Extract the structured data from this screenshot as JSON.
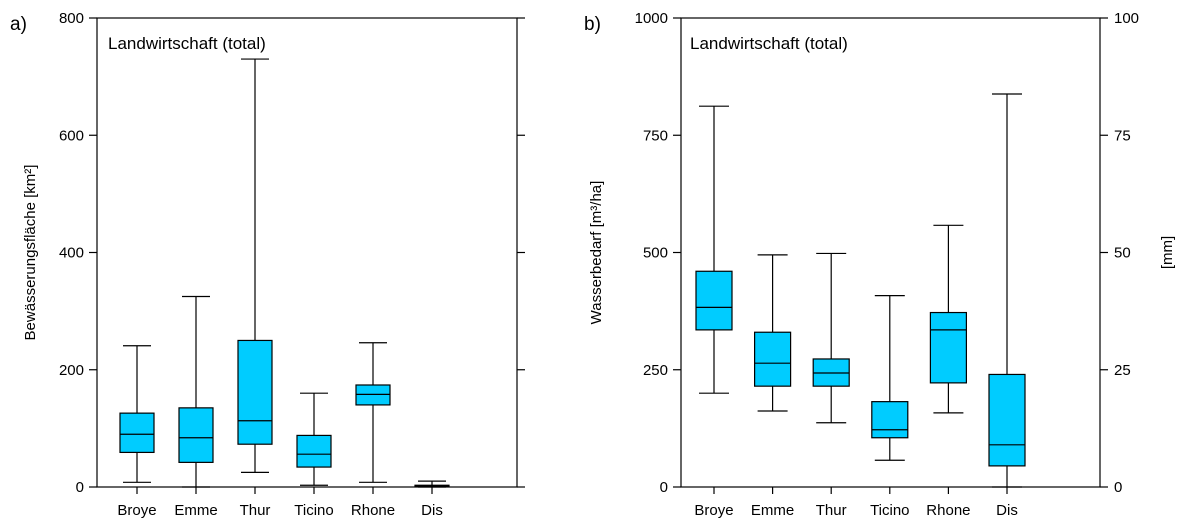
{
  "chart_data": [
    {
      "type": "box",
      "panel_label": "a)",
      "title": "Landwirtschaft (total)",
      "ylabel": "Bewässerungsfläche [km²]",
      "ylim": [
        0,
        800
      ],
      "yticks": [
        "0",
        "200",
        "400",
        "600",
        "800"
      ],
      "y2ticks": [],
      "y2label": "",
      "categories": [
        "Broye",
        "Emme",
        "Thur",
        "Ticino",
        "Rhone",
        "Dis"
      ],
      "box_color": "#00ccff",
      "boxes": [
        {
          "min": 8,
          "q1": 59,
          "median": 90,
          "q3": 126,
          "max": 241
        },
        {
          "min": 0,
          "q1": 42,
          "median": 84,
          "q3": 135,
          "max": 325
        },
        {
          "min": 25,
          "q1": 73,
          "median": 113,
          "q3": 250,
          "max": 730
        },
        {
          "min": 3,
          "q1": 34,
          "median": 56,
          "q3": 88,
          "max": 160
        },
        {
          "min": 8,
          "q1": 140,
          "median": 158,
          "q3": 174,
          "max": 246
        },
        {
          "min": 0,
          "q1": 0.5,
          "median": 1.5,
          "q3": 3,
          "max": 10
        }
      ]
    },
    {
      "type": "box",
      "panel_label": "b)",
      "title": "Landwirtschaft (total)",
      "ylabel": "Wasserbedarf [m³/ha]",
      "ylim": [
        0,
        1000
      ],
      "yticks": [
        "0",
        "250",
        "500",
        "750",
        "1000"
      ],
      "y2ticks": [
        "0",
        "25",
        "50",
        "75",
        "100"
      ],
      "y2label": "[mm]",
      "categories": [
        "Broye",
        "Emme",
        "Thur",
        "Ticino",
        "Rhone",
        "Dis"
      ],
      "box_color": "#00ccff",
      "boxes": [
        {
          "min": 200,
          "q1": 335,
          "median": 383,
          "q3": 460,
          "max": 812
        },
        {
          "min": 162,
          "q1": 215,
          "median": 264,
          "q3": 330,
          "max": 495
        },
        {
          "min": 137,
          "q1": 215,
          "median": 243,
          "q3": 273,
          "max": 498
        },
        {
          "min": 57,
          "q1": 105,
          "median": 122,
          "q3": 182,
          "max": 408
        },
        {
          "min": 158,
          "q1": 222,
          "median": 335,
          "q3": 372,
          "max": 558
        },
        {
          "min": 0,
          "q1": 45,
          "median": 90,
          "q3": 240,
          "max": 838
        }
      ]
    }
  ]
}
